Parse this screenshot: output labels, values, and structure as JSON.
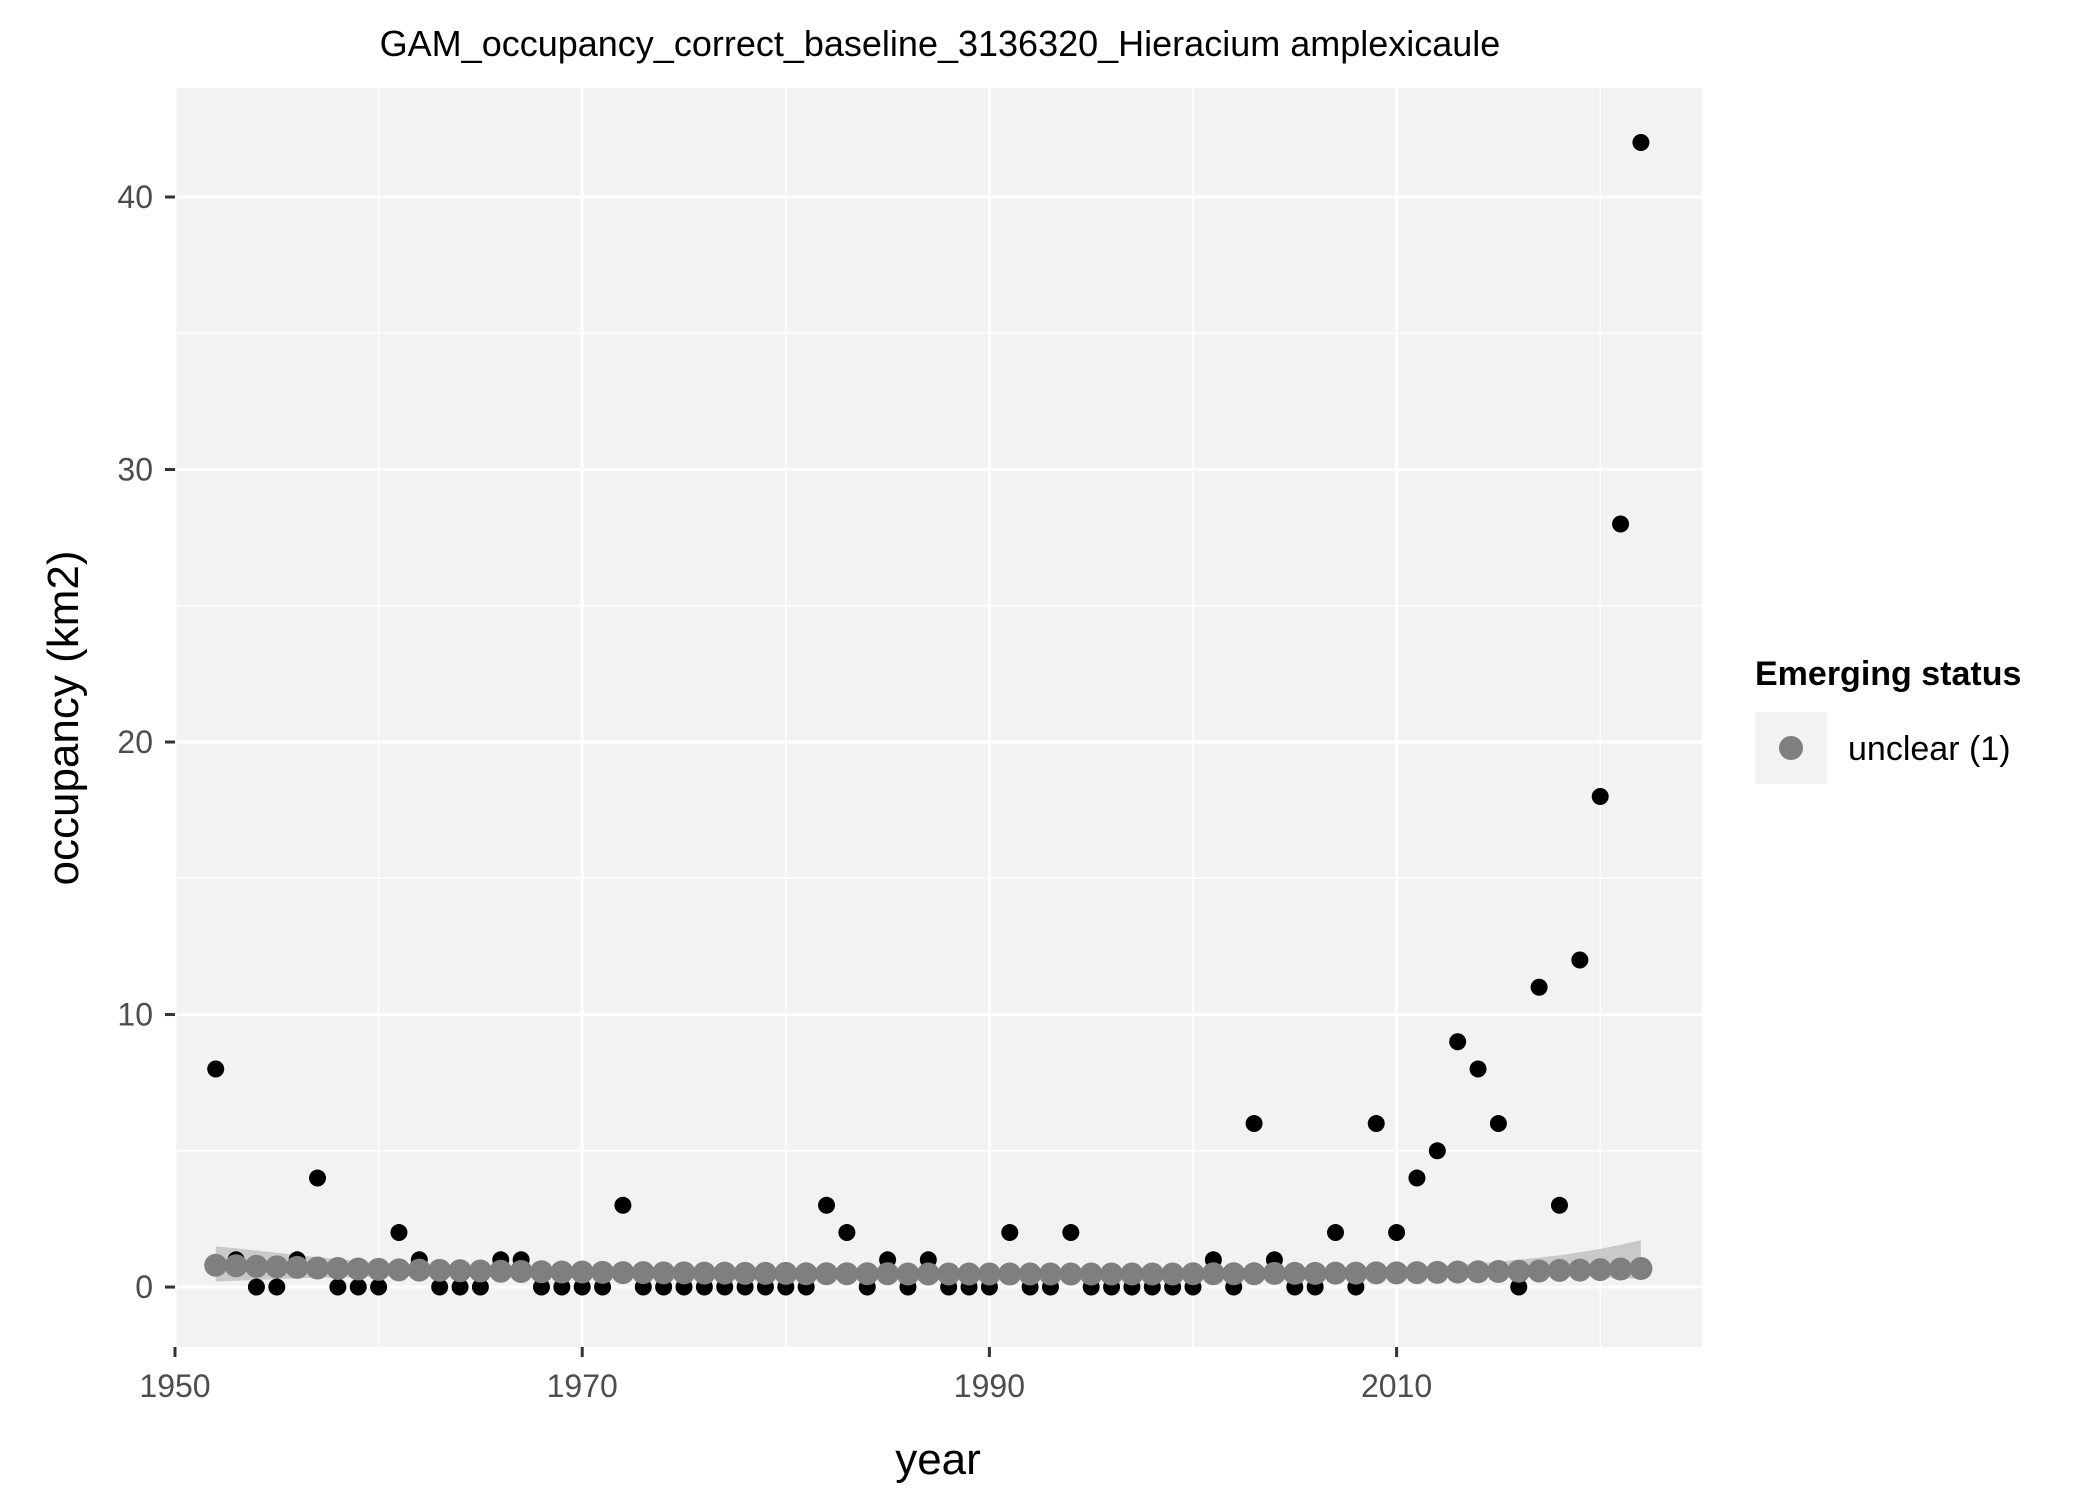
{
  "chart_data": {
    "type": "scatter",
    "title": "GAM_occupancy_correct_baseline_3136320_Hieracium amplexicaule",
    "xlabel": "year",
    "ylabel": "occupancy (km2)",
    "xlim": [
      1950,
      2025
    ],
    "ylim": [
      -2.2,
      44
    ],
    "x_ticks": [
      1950,
      1970,
      1990,
      2010
    ],
    "y_ticks": [
      0,
      10,
      20,
      30,
      40
    ],
    "grid": true,
    "legend": {
      "title": "Emerging status",
      "position": "right",
      "entries": [
        {
          "label": "unclear (1)",
          "color": "#7f7f7f"
        }
      ]
    },
    "colors": {
      "observed": "#000000",
      "fitted": "#7f7f7f",
      "ribbon": "#c2c2c2",
      "panel": "#f2f2f2",
      "grid": "#ffffff"
    },
    "observed": {
      "x": [
        1952,
        1953,
        1954,
        1955,
        1956,
        1957,
        1958,
        1959,
        1960,
        1961,
        1962,
        1963,
        1964,
        1965,
        1966,
        1967,
        1968,
        1969,
        1970,
        1971,
        1972,
        1973,
        1974,
        1975,
        1976,
        1977,
        1978,
        1979,
        1980,
        1981,
        1982,
        1983,
        1984,
        1985,
        1986,
        1987,
        1988,
        1989,
        1990,
        1991,
        1992,
        1993,
        1994,
        1995,
        1996,
        1997,
        1998,
        1999,
        2000,
        2001,
        2002,
        2003,
        2004,
        2005,
        2006,
        2007,
        2008,
        2009,
        2010,
        2011,
        2012,
        2013,
        2014,
        2015,
        2016,
        2017,
        2018,
        2019,
        2020,
        2021,
        2022
      ],
      "y": [
        8,
        1,
        0,
        0,
        1,
        4,
        0,
        0,
        0,
        2,
        1,
        0,
        0,
        0,
        1,
        1,
        0,
        0,
        0,
        0,
        3,
        0,
        0,
        0,
        0,
        0,
        0,
        0,
        0,
        0,
        3,
        2,
        0,
        1,
        0,
        1,
        0,
        0,
        0,
        2,
        0,
        0,
        2,
        0,
        0,
        0,
        0,
        0,
        0,
        1,
        0,
        6,
        1,
        0,
        0,
        2,
        0,
        6,
        2,
        4,
        5,
        9,
        8,
        6,
        0,
        11,
        3,
        12,
        18,
        28,
        42
      ]
    },
    "fitted": {
      "x": [
        1952,
        1953,
        1954,
        1955,
        1956,
        1957,
        1958,
        1959,
        1960,
        1961,
        1962,
        1963,
        1964,
        1965,
        1966,
        1967,
        1968,
        1969,
        1970,
        1971,
        1972,
        1973,
        1974,
        1975,
        1976,
        1977,
        1978,
        1979,
        1980,
        1981,
        1982,
        1983,
        1984,
        1985,
        1986,
        1987,
        1988,
        1989,
        1990,
        1991,
        1992,
        1993,
        1994,
        1995,
        1996,
        1997,
        1998,
        1999,
        2000,
        2001,
        2002,
        2003,
        2004,
        2005,
        2006,
        2007,
        2008,
        2009,
        2010,
        2011,
        2012,
        2013,
        2014,
        2015,
        2016,
        2017,
        2018,
        2019,
        2020,
        2021,
        2022
      ],
      "y": [
        0.8,
        0.78,
        0.76,
        0.74,
        0.72,
        0.7,
        0.68,
        0.66,
        0.65,
        0.63,
        0.62,
        0.61,
        0.6,
        0.59,
        0.58,
        0.57,
        0.56,
        0.55,
        0.55,
        0.54,
        0.53,
        0.53,
        0.52,
        0.52,
        0.51,
        0.51,
        0.5,
        0.5,
        0.5,
        0.49,
        0.49,
        0.49,
        0.49,
        0.49,
        0.48,
        0.48,
        0.48,
        0.48,
        0.48,
        0.48,
        0.48,
        0.48,
        0.48,
        0.48,
        0.48,
        0.48,
        0.48,
        0.48,
        0.49,
        0.49,
        0.49,
        0.49,
        0.5,
        0.5,
        0.5,
        0.51,
        0.51,
        0.52,
        0.52,
        0.53,
        0.54,
        0.55,
        0.56,
        0.57,
        0.58,
        0.59,
        0.61,
        0.62,
        0.64,
        0.66,
        0.68
      ],
      "lower": [
        0.2,
        0.23,
        0.26,
        0.29,
        0.32,
        0.34,
        0.36,
        0.37,
        0.38,
        0.39,
        0.4,
        0.4,
        0.41,
        0.41,
        0.41,
        0.41,
        0.42,
        0.42,
        0.42,
        0.42,
        0.42,
        0.42,
        0.42,
        0.42,
        0.42,
        0.42,
        0.42,
        0.42,
        0.42,
        0.42,
        0.42,
        0.42,
        0.42,
        0.42,
        0.42,
        0.42,
        0.42,
        0.42,
        0.42,
        0.42,
        0.42,
        0.42,
        0.42,
        0.42,
        0.42,
        0.42,
        0.42,
        0.42,
        0.42,
        0.42,
        0.42,
        0.42,
        0.42,
        0.42,
        0.42,
        0.42,
        0.42,
        0.42,
        0.42,
        0.42,
        0.42,
        0.42,
        0.42,
        0.42,
        0.41,
        0.4,
        0.39,
        0.38,
        0.36,
        0.33,
        0.3
      ],
      "upper": [
        1.5,
        1.42,
        1.34,
        1.26,
        1.18,
        1.1,
        1.03,
        0.96,
        0.9,
        0.85,
        0.8,
        0.76,
        0.73,
        0.7,
        0.68,
        0.66,
        0.64,
        0.63,
        0.62,
        0.61,
        0.6,
        0.59,
        0.58,
        0.58,
        0.57,
        0.57,
        0.56,
        0.56,
        0.56,
        0.55,
        0.55,
        0.55,
        0.55,
        0.55,
        0.55,
        0.54,
        0.54,
        0.54,
        0.54,
        0.54,
        0.54,
        0.54,
        0.54,
        0.54,
        0.55,
        0.55,
        0.55,
        0.55,
        0.56,
        0.56,
        0.57,
        0.58,
        0.59,
        0.6,
        0.62,
        0.64,
        0.66,
        0.68,
        0.71,
        0.74,
        0.78,
        0.82,
        0.87,
        0.93,
        1.0,
        1.08,
        1.17,
        1.28,
        1.4,
        1.55,
        1.72
      ]
    }
  }
}
